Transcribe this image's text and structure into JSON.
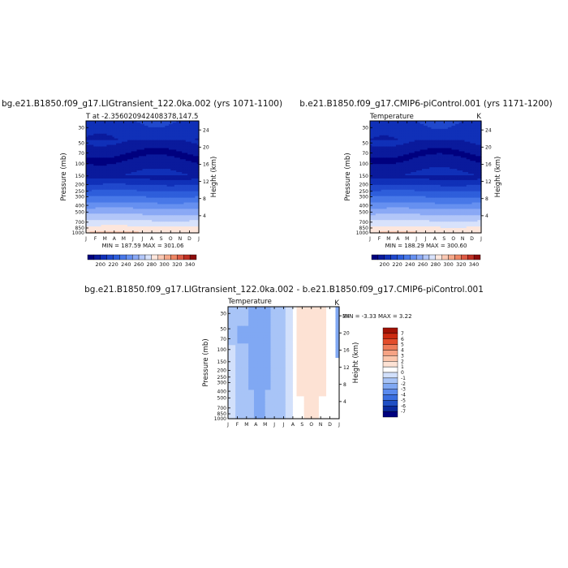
{
  "chart_data": [
    {
      "type": "heatmap",
      "title": "bg.e21.B1850.f09_g17.LIGtransient_122.0ka.002 (yrs 1071-1100)",
      "subtitle_left": "T at -2.356020942408378,147.5",
      "subtitle_right": "",
      "xlabel": "",
      "ylabel": "Pressure (mb)",
      "y2label": "Height (km)",
      "x_ticks": [
        "J",
        "F",
        "M",
        "A",
        "M",
        "J",
        "J",
        "A",
        "S",
        "O",
        "N",
        "D",
        "J"
      ],
      "pressure_ticks": [
        "30",
        "50",
        "70",
        "100",
        "150",
        "200",
        "250",
        "300",
        "400",
        "500",
        "700",
        "850",
        "1000"
      ],
      "pressure_values": [
        30,
        50,
        70,
        100,
        150,
        200,
        250,
        300,
        400,
        500,
        700,
        850,
        1000
      ],
      "ylim": [
        1000,
        24
      ],
      "height_ticks": [
        "24",
        "20",
        "16",
        "12",
        "8",
        "4"
      ],
      "height_values": [
        24,
        20,
        16,
        12,
        8,
        4
      ],
      "min_max_text": "MIN = 187.59  MAX = 301.06",
      "colorbar_ticks": [
        "200",
        "220",
        "240",
        "260",
        "280",
        "300",
        "320",
        "340"
      ],
      "colorbar_levels": [
        190,
        200,
        210,
        220,
        230,
        240,
        250,
        260,
        270,
        280,
        290,
        300,
        310,
        320,
        330,
        340,
        350
      ]
    },
    {
      "type": "heatmap",
      "title": "b.e21.B1850.f09_g17.CMIP6-piControl.001 (yrs 1171-1200)",
      "subtitle_left": "Temperature",
      "subtitle_right": "K",
      "xlabel": "",
      "ylabel": "Pressure (mb)",
      "y2label": "Height (km)",
      "x_ticks": [
        "J",
        "F",
        "M",
        "A",
        "M",
        "J",
        "J",
        "A",
        "S",
        "O",
        "N",
        "D",
        "J"
      ],
      "pressure_ticks": [
        "30",
        "50",
        "70",
        "100",
        "150",
        "200",
        "250",
        "300",
        "400",
        "500",
        "700",
        "850",
        "1000"
      ],
      "pressure_values": [
        30,
        50,
        70,
        100,
        150,
        200,
        250,
        300,
        400,
        500,
        700,
        850,
        1000
      ],
      "ylim": [
        1000,
        24
      ],
      "height_ticks": [
        "24",
        "20",
        "16",
        "12",
        "8",
        "4"
      ],
      "height_values": [
        24,
        20,
        16,
        12,
        8,
        4
      ],
      "min_max_text": "MIN = 188.29  MAX = 300.60",
      "colorbar_ticks": [
        "200",
        "220",
        "240",
        "260",
        "280",
        "300",
        "320",
        "340"
      ],
      "colorbar_levels": [
        190,
        200,
        210,
        220,
        230,
        240,
        250,
        260,
        270,
        280,
        290,
        300,
        310,
        320,
        330,
        340,
        350
      ]
    },
    {
      "type": "heatmap",
      "title": "bg.e21.B1850.f09_g17.LIGtransient_122.0ka.002 - b.e21.B1850.f09_g17.CMIP6-piControl.001",
      "subtitle_left": "Temperature",
      "subtitle_right": "K",
      "xlabel": "",
      "ylabel": "Pressure (mb)",
      "y2label": "Height (km)",
      "x_ticks": [
        "J",
        "F",
        "M",
        "A",
        "M",
        "J",
        "J",
        "A",
        "S",
        "O",
        "N",
        "D",
        "J"
      ],
      "pressure_ticks": [
        "30",
        "50",
        "70",
        "100",
        "150",
        "200",
        "250",
        "300",
        "400",
        "500",
        "700",
        "850",
        "1000"
      ],
      "pressure_values": [
        30,
        50,
        70,
        100,
        150,
        200,
        250,
        300,
        400,
        500,
        700,
        850,
        1000
      ],
      "ylim": [
        1000,
        24
      ],
      "height_ticks": [
        "24",
        "20",
        "16",
        "12",
        "8",
        "4"
      ],
      "height_values": [
        24,
        20,
        16,
        12,
        8,
        4
      ],
      "min_max_text": "MIN =   -3.33  MAX =    3.22",
      "colorbar_ticks": [
        "7",
        "6",
        "5",
        "4",
        "3",
        "2",
        "1",
        "0",
        "-1",
        "-2",
        "-3",
        "-4",
        "-5",
        "-6",
        "-7"
      ],
      "colorbar_levels": [
        -7,
        -6,
        -5,
        -4,
        -3,
        -2,
        -1,
        0,
        1,
        2,
        3,
        4,
        5,
        6,
        7
      ]
    }
  ],
  "palettes": {
    "temperature": [
      "#00007f",
      "#0a1a9c",
      "#1030b8",
      "#2048cc",
      "#2e5edb",
      "#4878e8",
      "#6690f0",
      "#8aa9f5",
      "#b2c6f8",
      "#d8e2fb",
      "#fde6dc",
      "#fac8b3",
      "#f5a889",
      "#ee8665",
      "#dc5a44",
      "#bf3024",
      "#8c0c0c"
    ],
    "difference": [
      "#00007f",
      "#0a2a9e",
      "#1f4fc4",
      "#3a6ee0",
      "#5a8aee",
      "#80a8f3",
      "#a8c4f7",
      "#d2e0fb",
      "#ffffff",
      "#fde2d4",
      "#fbc6ac",
      "#f6a384",
      "#ee7c5a",
      "#e34d2b",
      "#cc2a10",
      "#a11204"
    ]
  }
}
